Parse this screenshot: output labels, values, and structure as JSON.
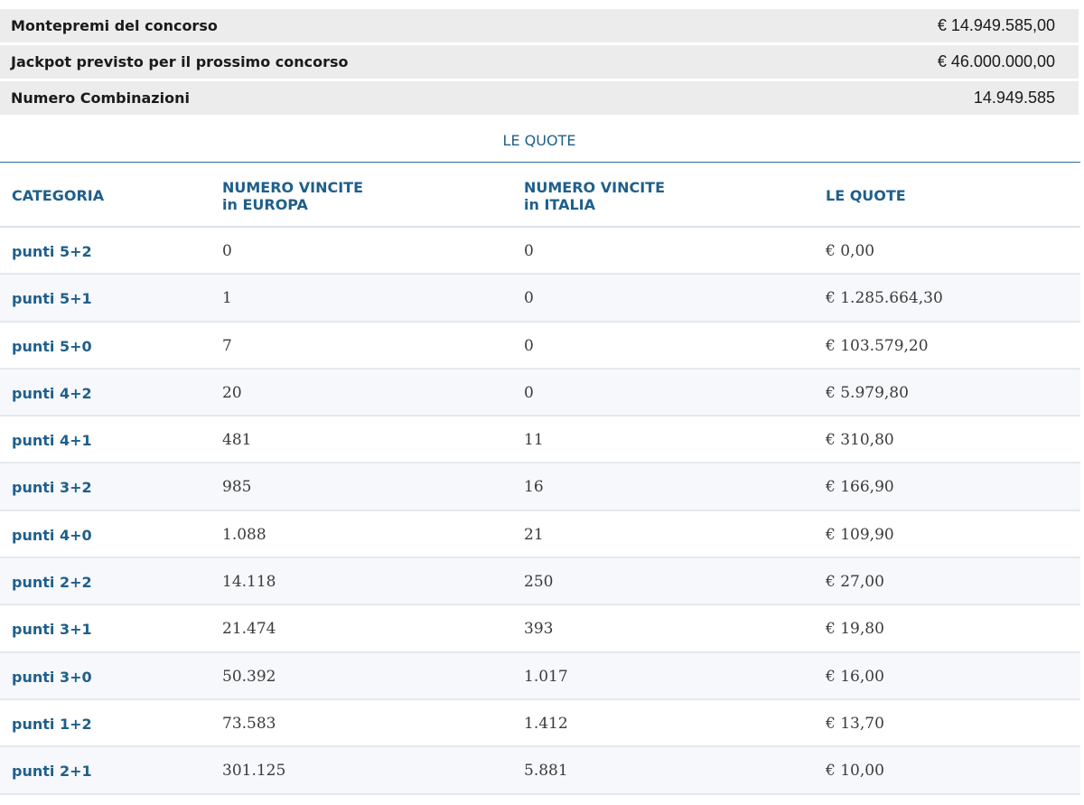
{
  "summary": [
    {
      "label": "Montepremi del concorso",
      "value": "€ 14.949.585,00"
    },
    {
      "label": "Jackpot previsto per il prossimo concorso",
      "value": "€ 46.000.000,00"
    },
    {
      "label": "Numero Combinazioni",
      "value": "14.949.585"
    }
  ],
  "section_title": "LE QUOTE",
  "columns": {
    "categoria": "CATEGORIA",
    "europa_line1": "NUMERO VINCITE",
    "europa_line2": "in EUROPA",
    "italia_line1": "NUMERO VINCITE",
    "italia_line2": "in ITALIA",
    "quote": "LE QUOTE"
  },
  "rows": [
    {
      "category": "punti 5+2",
      "europe": "0",
      "italy": "0",
      "quote": "€ 0,00"
    },
    {
      "category": "punti 5+1",
      "europe": "1",
      "italy": "0",
      "quote": "€ 1.285.664,30"
    },
    {
      "category": "punti 5+0",
      "europe": "7",
      "italy": "0",
      "quote": "€ 103.579,20"
    },
    {
      "category": "punti 4+2",
      "europe": "20",
      "italy": "0",
      "quote": "€ 5.979,80"
    },
    {
      "category": "punti 4+1",
      "europe": "481",
      "italy": "11",
      "quote": "€ 310,80"
    },
    {
      "category": "punti 3+2",
      "europe": "985",
      "italy": "16",
      "quote": "€ 166,90"
    },
    {
      "category": "punti 4+0",
      "europe": "1.088",
      "italy": "21",
      "quote": "€ 109,90"
    },
    {
      "category": "punti 2+2",
      "europe": "14.118",
      "italy": "250",
      "quote": "€ 27,00"
    },
    {
      "category": "punti 3+1",
      "europe": "21.474",
      "italy": "393",
      "quote": "€ 19,80"
    },
    {
      "category": "punti 3+0",
      "europe": "50.392",
      "italy": "1.017",
      "quote": "€ 16,00"
    },
    {
      "category": "punti 1+2",
      "europe": "73.583",
      "italy": "1.412",
      "quote": "€ 13,70"
    },
    {
      "category": "punti 2+1",
      "europe": "301.125",
      "italy": "5.881",
      "quote": "€ 10,00"
    }
  ],
  "colors": {
    "accent": "#1f5f8b",
    "summary_bg": "#ececec",
    "row_alt_bg": "#f6f8fb"
  }
}
